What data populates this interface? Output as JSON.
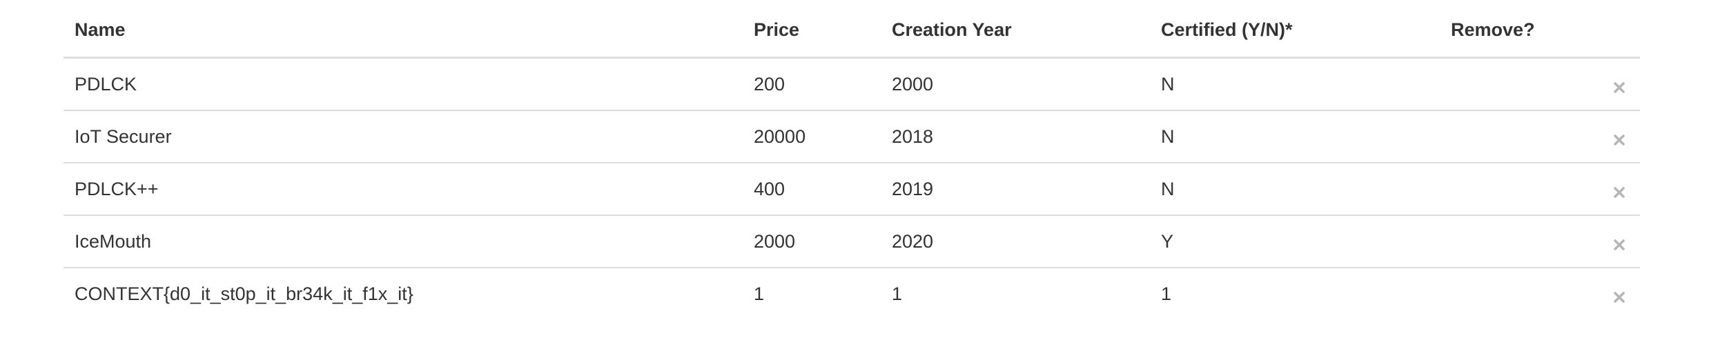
{
  "table": {
    "headers": {
      "name": "Name",
      "price": "Price",
      "year": "Creation Year",
      "certified": "Certified (Y/N)*",
      "remove": "Remove?"
    },
    "rows": [
      {
        "name": "PDLCK",
        "price": "200",
        "year": "2000",
        "certified": "N"
      },
      {
        "name": "IoT Securer",
        "price": "20000",
        "year": "2018",
        "certified": "N"
      },
      {
        "name": "PDLCK++",
        "price": "400",
        "year": "2019",
        "certified": "N"
      },
      {
        "name": "IceMouth",
        "price": "2000",
        "year": "2020",
        "certified": "Y"
      },
      {
        "name": "CONTEXT{d0_it_st0p_it_br34k_it_f1x_it}",
        "price": "1",
        "year": "1",
        "certified": "1"
      }
    ]
  },
  "icons": {
    "remove": "close-icon"
  },
  "colors": {
    "text": "#333333",
    "border": "#dddddd",
    "remove_icon": "#b5b5b5"
  }
}
